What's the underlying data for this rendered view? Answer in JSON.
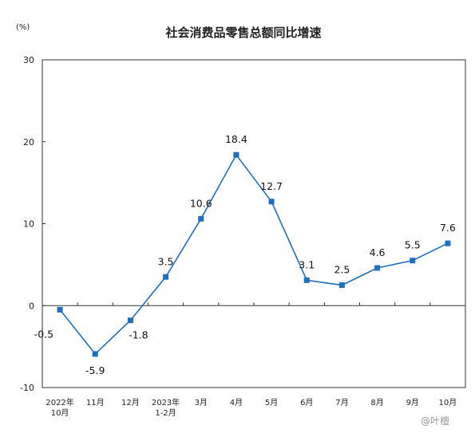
{
  "chart_data": {
    "type": "line",
    "title": "社会消费品零售总额同比增速",
    "ylabel": "(%)",
    "ylim": [
      -10,
      30
    ],
    "yticks": [
      -10,
      0,
      10,
      20,
      30
    ],
    "categories": [
      [
        "2022年",
        "10月"
      ],
      [
        "11月"
      ],
      [
        "12月"
      ],
      [
        "2023年",
        "1-2月"
      ],
      [
        "3月"
      ],
      [
        "4月"
      ],
      [
        "5月"
      ],
      [
        "6月"
      ],
      [
        "7月"
      ],
      [
        "8月"
      ],
      [
        "9月"
      ],
      [
        "10月"
      ]
    ],
    "series": [
      {
        "values": [
          -0.5,
          -5.9,
          -1.8,
          3.5,
          10.6,
          18.4,
          12.7,
          3.1,
          2.5,
          4.6,
          5.5,
          7.6
        ]
      }
    ],
    "data_labels": [
      "-0.5",
      "-5.9",
      "-1.8",
      "3.5",
      "10.6",
      "18.4",
      "12.7",
      "3.1",
      "2.5",
      "4.6",
      "5.5",
      "7.6"
    ],
    "line_color": "#1f6fbf",
    "grid": false,
    "legend": "none"
  },
  "watermark": "@叶檀"
}
